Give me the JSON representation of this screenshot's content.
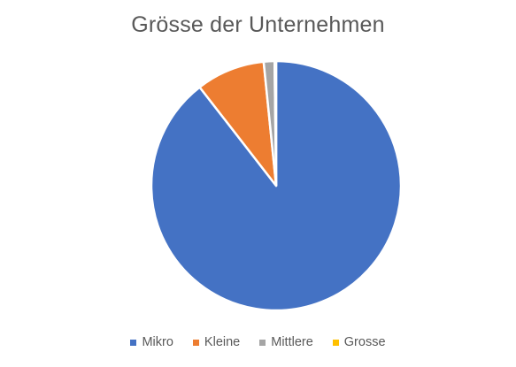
{
  "chart_data": {
    "type": "pie",
    "title": "Grösse der Unternehmen",
    "categories": [
      "Mikro",
      "Kleine",
      "Mittlere",
      "Grosse"
    ],
    "values": [
      89.5,
      8.9,
      1.4,
      0.2
    ],
    "colors": [
      "#4472C4",
      "#ED7D31",
      "#A5A5A5",
      "#FFC000"
    ],
    "legend": "bottom"
  }
}
